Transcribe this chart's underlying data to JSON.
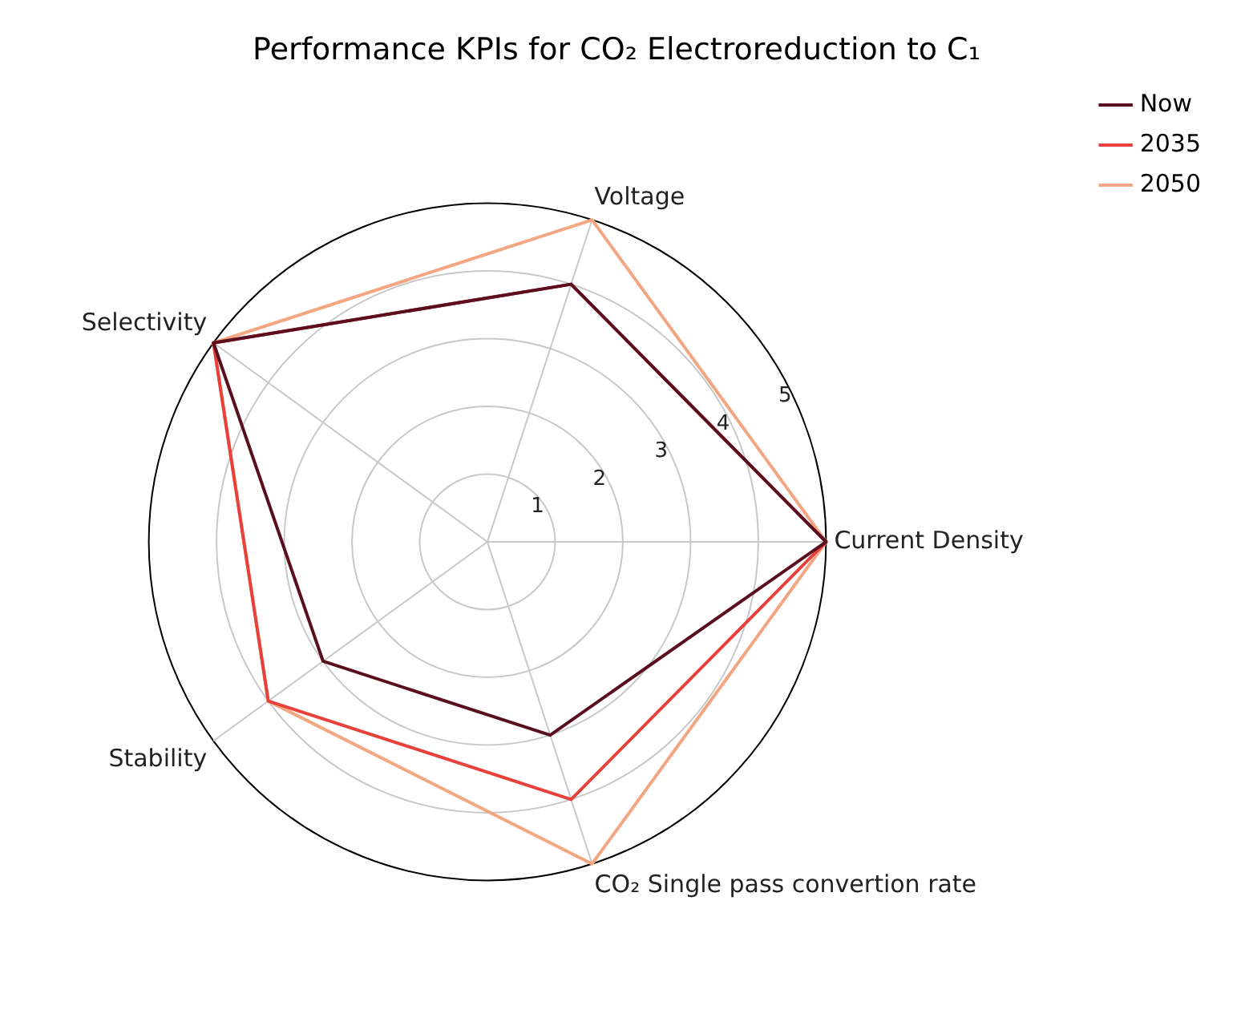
{
  "chart_data": {
    "type": "radar",
    "title": "Performance KPIs for CO₂ Electroreduction to C₁",
    "categories": [
      "Voltage",
      "Current Density",
      "CO₂ Single pass convertion rate",
      "Stability",
      "Selectivity"
    ],
    "series": [
      {
        "name": "Now",
        "color": "#5a0f1e",
        "values": [
          4,
          5,
          3,
          3,
          5
        ]
      },
      {
        "name": "2035",
        "color": "#e8413c",
        "values": [
          4,
          5,
          4,
          4,
          5
        ]
      },
      {
        "name": "2050",
        "color": "#f4a582",
        "values": [
          5,
          5,
          5,
          4,
          5
        ]
      }
    ],
    "ylim": [
      0,
      5
    ],
    "yticks": [
      1,
      2,
      3,
      4,
      5
    ],
    "grid": true,
    "legend": "top right"
  }
}
